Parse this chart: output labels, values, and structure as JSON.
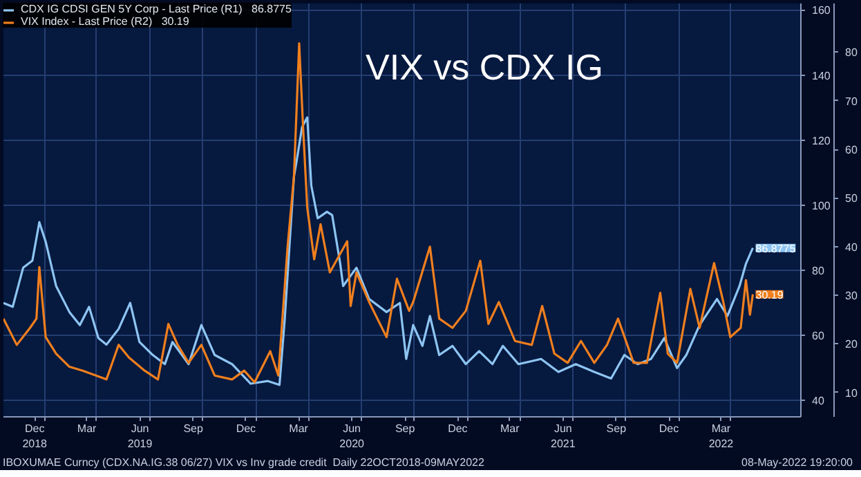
{
  "chart_data": {
    "type": "line",
    "title": "VIX vs CDX IG",
    "xlim": [
      "2018-10-22",
      "2022-07-31"
    ],
    "xticks": [
      {
        "value": "2018-12-15",
        "label": "Dec\n2018"
      },
      {
        "value": "2019-03-15",
        "label": "Mar"
      },
      {
        "value": "2019-06-15",
        "label": "Jun\n2019"
      },
      {
        "value": "2019-09-15",
        "label": "Sep"
      },
      {
        "value": "2019-12-15",
        "label": "Dec"
      },
      {
        "value": "2020-03-15",
        "label": "Mar"
      },
      {
        "value": "2020-06-15",
        "label": "Jun\n2020"
      },
      {
        "value": "2020-09-15",
        "label": "Sep"
      },
      {
        "value": "2020-12-15",
        "label": "Dec"
      },
      {
        "value": "2021-03-15",
        "label": "Mar"
      },
      {
        "value": "2021-06-15",
        "label": "Jun\n2021"
      },
      {
        "value": "2021-09-15",
        "label": "Sep"
      },
      {
        "value": "2021-12-15",
        "label": "Dec"
      },
      {
        "value": "2022-03-15",
        "label": "Mar\n2022"
      },
      {
        "value": "2019-01-01",
        "label": null
      },
      {
        "value": "2019-04-01",
        "label": null
      },
      {
        "value": "2019-07-01",
        "label": null
      },
      {
        "value": "2019-10-01",
        "label": null
      },
      {
        "value": "2020-01-01",
        "label": null
      },
      {
        "value": "2020-04-01",
        "label": null
      },
      {
        "value": "2020-07-01",
        "label": null
      },
      {
        "value": "2020-10-01",
        "label": null
      },
      {
        "value": "2021-01-01",
        "label": null
      },
      {
        "value": "2021-04-01",
        "label": null
      },
      {
        "value": "2021-07-01",
        "label": null
      },
      {
        "value": "2021-10-01",
        "label": null
      },
      {
        "value": "2022-01-01",
        "label": null
      },
      {
        "value": "2022-04-01",
        "label": null
      }
    ],
    "ylim": [
      35,
      162
    ],
    "yticks": [
      40,
      60,
      80,
      100,
      120,
      140,
      160
    ],
    "y2lim": [
      5,
      90
    ],
    "y2ticks": [
      10,
      20,
      30,
      40,
      50,
      60,
      70,
      80
    ],
    "grid": true,
    "legend": "top left",
    "series": [
      {
        "name": "CDX IG CDSI GEN 5Y Corp - Last Price (R1)   86.8775",
        "color": "#8ec5f2",
        "x": [
          "2018-10-22",
          "2018-11-07",
          "2018-11-25",
          "2018-12-11",
          "2018-12-23",
          "2019-01-03",
          "2019-01-21",
          "2019-02-13",
          "2019-03-03",
          "2019-03-19",
          "2019-04-04",
          "2019-04-18",
          "2019-05-09",
          "2019-05-29",
          "2019-06-14",
          "2019-07-07",
          "2019-07-28",
          "2019-08-10",
          "2019-09-07",
          "2019-09-29",
          "2019-10-22",
          "2019-11-21",
          "2019-12-23",
          "2020-01-22",
          "2020-02-11",
          "2020-02-20",
          "2020-03-07",
          "2020-03-12",
          "2020-03-21",
          "2020-03-30",
          "2020-04-06",
          "2020-04-17",
          "2020-05-03",
          "2020-05-12",
          "2020-05-26",
          "2020-05-31",
          "2020-06-23",
          "2020-07-15",
          "2020-08-14",
          "2020-09-06",
          "2020-09-17",
          "2020-09-29",
          "2020-10-15",
          "2020-10-28",
          "2020-11-13",
          "2020-12-06",
          "2020-12-29",
          "2021-01-21",
          "2021-02-13",
          "2021-03-03",
          "2021-03-30",
          "2021-05-08",
          "2021-06-07",
          "2021-07-07",
          "2021-08-08",
          "2021-09-06",
          "2021-09-29",
          "2021-10-22",
          "2021-11-14",
          "2021-12-07",
          "2021-12-29",
          "2022-01-14",
          "2022-02-06",
          "2022-03-08",
          "2022-03-26",
          "2022-04-16",
          "2022-04-27",
          "2022-05-09"
        ],
        "values": [
          70,
          68.8,
          80.8,
          83,
          94.8,
          88.8,
          75.2,
          67.2,
          63.2,
          68.8,
          59.2,
          57.2,
          62,
          70,
          58,
          54,
          51.2,
          58,
          51.2,
          63.2,
          54,
          51.2,
          45.2,
          46,
          44.8,
          64.8,
          108.8,
          114,
          124,
          127,
          106,
          96,
          98,
          97,
          82,
          75.2,
          80.8,
          71.2,
          67.2,
          70,
          52.8,
          63.2,
          56.8,
          66,
          54,
          56.8,
          51.2,
          55.2,
          51.2,
          56.8,
          51.2,
          52.8,
          48.8,
          51.2,
          48.8,
          46.8,
          54,
          51.2,
          52.8,
          59.2,
          50,
          54,
          63.2,
          71.2,
          66,
          75.2,
          82,
          86.8775
        ],
        "value_labels": [
          null,
          null,
          null,
          null,
          null,
          null,
          null,
          null,
          null,
          null,
          null,
          null,
          null,
          null,
          null,
          null,
          null,
          null,
          null,
          null,
          null,
          null,
          null,
          null,
          null,
          null,
          null,
          null,
          null,
          null,
          null,
          null,
          null,
          null,
          null,
          null,
          null,
          null,
          null,
          null,
          null,
          null,
          null,
          null,
          null,
          null,
          null,
          null,
          null,
          null,
          null,
          null,
          null,
          null,
          null,
          null,
          null,
          null,
          null,
          null,
          null,
          null,
          null,
          null,
          null,
          null,
          null,
          "86.8775"
        ]
      },
      {
        "name": "VIX Index - Last Price (R2)   30.19",
        "color": "#f07f1e",
        "axis": "y2",
        "x": [
          "2018-10-22",
          "2018-11-14",
          "2018-12-07",
          "2018-12-18",
          "2018-12-23",
          "2019-01-03",
          "2019-01-21",
          "2019-02-13",
          "2019-03-08",
          "2019-03-31",
          "2019-04-18",
          "2019-05-09",
          "2019-05-27",
          "2019-06-23",
          "2019-07-16",
          "2019-08-03",
          "2019-08-19",
          "2019-09-07",
          "2019-09-29",
          "2019-10-22",
          "2019-11-21",
          "2019-12-12",
          "2019-12-30",
          "2020-01-26",
          "2020-02-09",
          "2020-02-25",
          "2020-03-07",
          "2020-03-16",
          "2020-03-23",
          "2020-03-30",
          "2020-04-11",
          "2020-04-22",
          "2020-05-08",
          "2020-06-07",
          "2020-06-13",
          "2020-06-23",
          "2020-07-15",
          "2020-08-14",
          "2020-09-01",
          "2020-09-22",
          "2020-09-29",
          "2020-10-28",
          "2020-11-13",
          "2020-12-06",
          "2020-12-29",
          "2021-01-23",
          "2021-02-06",
          "2021-02-24",
          "2021-03-24",
          "2021-04-22",
          "2021-05-10",
          "2021-05-31",
          "2021-06-23",
          "2021-07-16",
          "2021-08-08",
          "2021-08-30",
          "2021-09-18",
          "2021-10-15",
          "2021-11-07",
          "2021-11-30",
          "2021-12-13",
          "2021-12-29",
          "2022-01-21",
          "2022-02-06",
          "2022-03-03",
          "2022-03-19",
          "2022-03-31",
          "2022-04-18",
          "2022-04-27",
          "2022-05-04",
          "2022-05-09"
        ],
        "values": [
          25.2,
          19.8,
          23.3,
          25.2,
          35.8,
          21.4,
          18,
          15.3,
          14.5,
          13.5,
          12.7,
          19.8,
          17.2,
          14.5,
          12.7,
          24.1,
          19.8,
          16.1,
          19.8,
          13.5,
          12.7,
          14.5,
          12.1,
          18.5,
          13.5,
          40,
          54.4,
          81.8,
          64,
          48,
          37.4,
          44.6,
          34.7,
          41.1,
          27.8,
          34.7,
          28.6,
          21.4,
          33.4,
          26.8,
          28.6,
          40,
          25.2,
          23.3,
          26.8,
          37.1,
          24.1,
          28.6,
          20.6,
          19.8,
          27.8,
          18,
          16.1,
          20.6,
          16.1,
          19.8,
          25.2,
          16.1,
          16.1,
          30.5,
          18,
          16.1,
          31.3,
          23.3,
          36.6,
          28.6,
          21.4,
          23.3,
          33.1,
          26,
          30.19
        ],
        "value_labels": [
          null,
          null,
          null,
          null,
          null,
          null,
          null,
          null,
          null,
          null,
          null,
          null,
          null,
          null,
          null,
          null,
          null,
          null,
          null,
          null,
          null,
          null,
          null,
          null,
          null,
          null,
          null,
          null,
          null,
          null,
          null,
          null,
          null,
          null,
          null,
          null,
          null,
          null,
          null,
          null,
          null,
          null,
          null,
          null,
          null,
          null,
          null,
          null,
          null,
          null,
          null,
          null,
          null,
          null,
          null,
          null,
          null,
          null,
          null,
          null,
          null,
          null,
          null,
          null,
          null,
          null,
          null,
          null,
          null,
          null,
          "30.19"
        ]
      }
    ],
    "annotations": [
      "IBOXUMAE Curncy (CDX.NA.IG.38 06/27) VIX vs Inv grade credit  Daily 22OCT2018-09MAY2022",
      "08-May-2022 19:20:00"
    ]
  }
}
